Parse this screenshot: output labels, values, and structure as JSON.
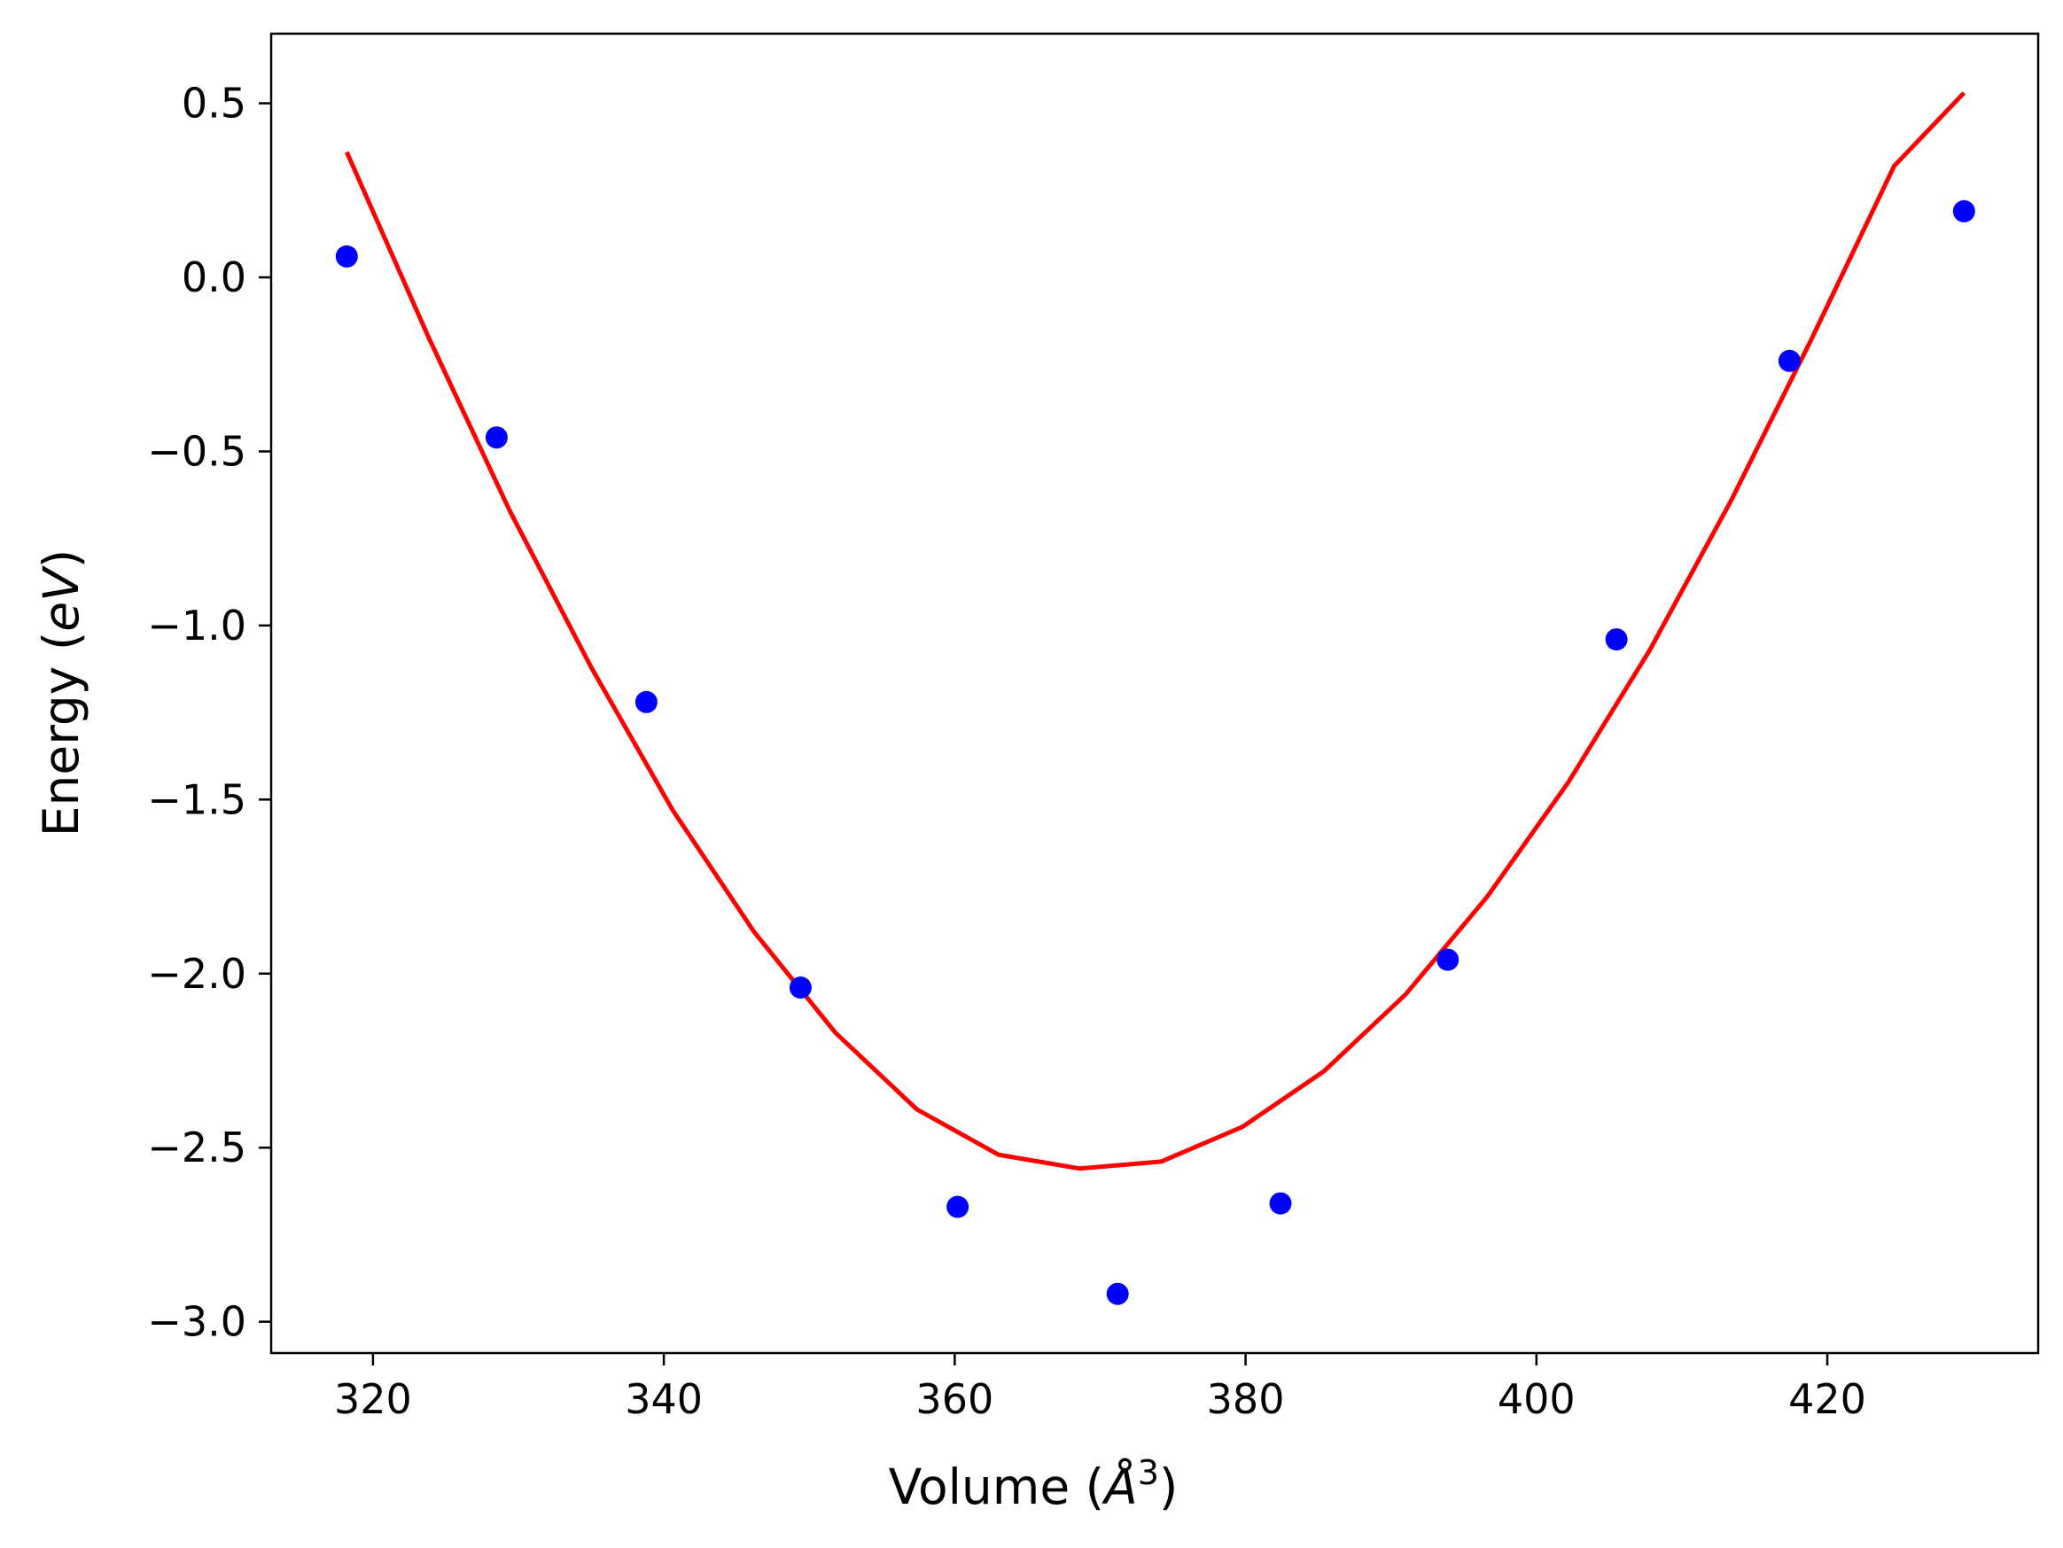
{
  "chart_data": {
    "type": "scatter",
    "title": "",
    "xlabel": {
      "prefix": "Volume (",
      "symbol": "Å",
      "superscript": "3",
      "suffix": ")"
    },
    "ylabel": {
      "prefix": "Energy (",
      "unit": "eV",
      "suffix": ")"
    },
    "xlim": [
      313,
      434.5
    ],
    "ylim": [
      -3.09,
      0.7
    ],
    "x_ticks": [
      320,
      340,
      360,
      380,
      400,
      420
    ],
    "x_tick_labels": [
      "320",
      "340",
      "360",
      "380",
      "400",
      "420"
    ],
    "y_ticks": [
      0.5,
      0.0,
      -0.5,
      -1.0,
      -1.5,
      -2.0,
      -2.5,
      -3.0
    ],
    "y_tick_labels": [
      "0.5",
      "0.0",
      "−0.5",
      "−1.0",
      "−1.5",
      "−2.0",
      "−2.5",
      "−3.0"
    ],
    "grid": false,
    "series": [
      {
        "kind": "points",
        "color": "#0000ff",
        "x": [
          318.2,
          328.5,
          338.8,
          349.4,
          360.2,
          371.2,
          382.4,
          393.9,
          405.5,
          417.4,
          429.4
        ],
        "y": [
          0.06,
          -0.46,
          -1.22,
          -2.04,
          -2.67,
          -2.92,
          -2.66,
          -1.96,
          -1.04,
          -0.24,
          0.19
        ]
      },
      {
        "kind": "fit-curve",
        "color": "#ff0000",
        "x": [
          318.2,
          323.8,
          329.4,
          335.0,
          340.6,
          346.2,
          351.8,
          357.4,
          363.0,
          368.6,
          374.2,
          379.8,
          385.4,
          391.0,
          396.6,
          402.2,
          407.8,
          413.4,
          419.0,
          424.6,
          429.4
        ],
        "y": [
          0.36,
          -0.17,
          -0.67,
          -1.12,
          -1.53,
          -1.88,
          -2.17,
          -2.39,
          -2.52,
          -2.56,
          -2.54,
          -2.44,
          -2.28,
          -2.06,
          -1.78,
          -1.45,
          -1.07,
          -0.64,
          -0.17,
          0.32,
          0.53
        ]
      }
    ]
  }
}
